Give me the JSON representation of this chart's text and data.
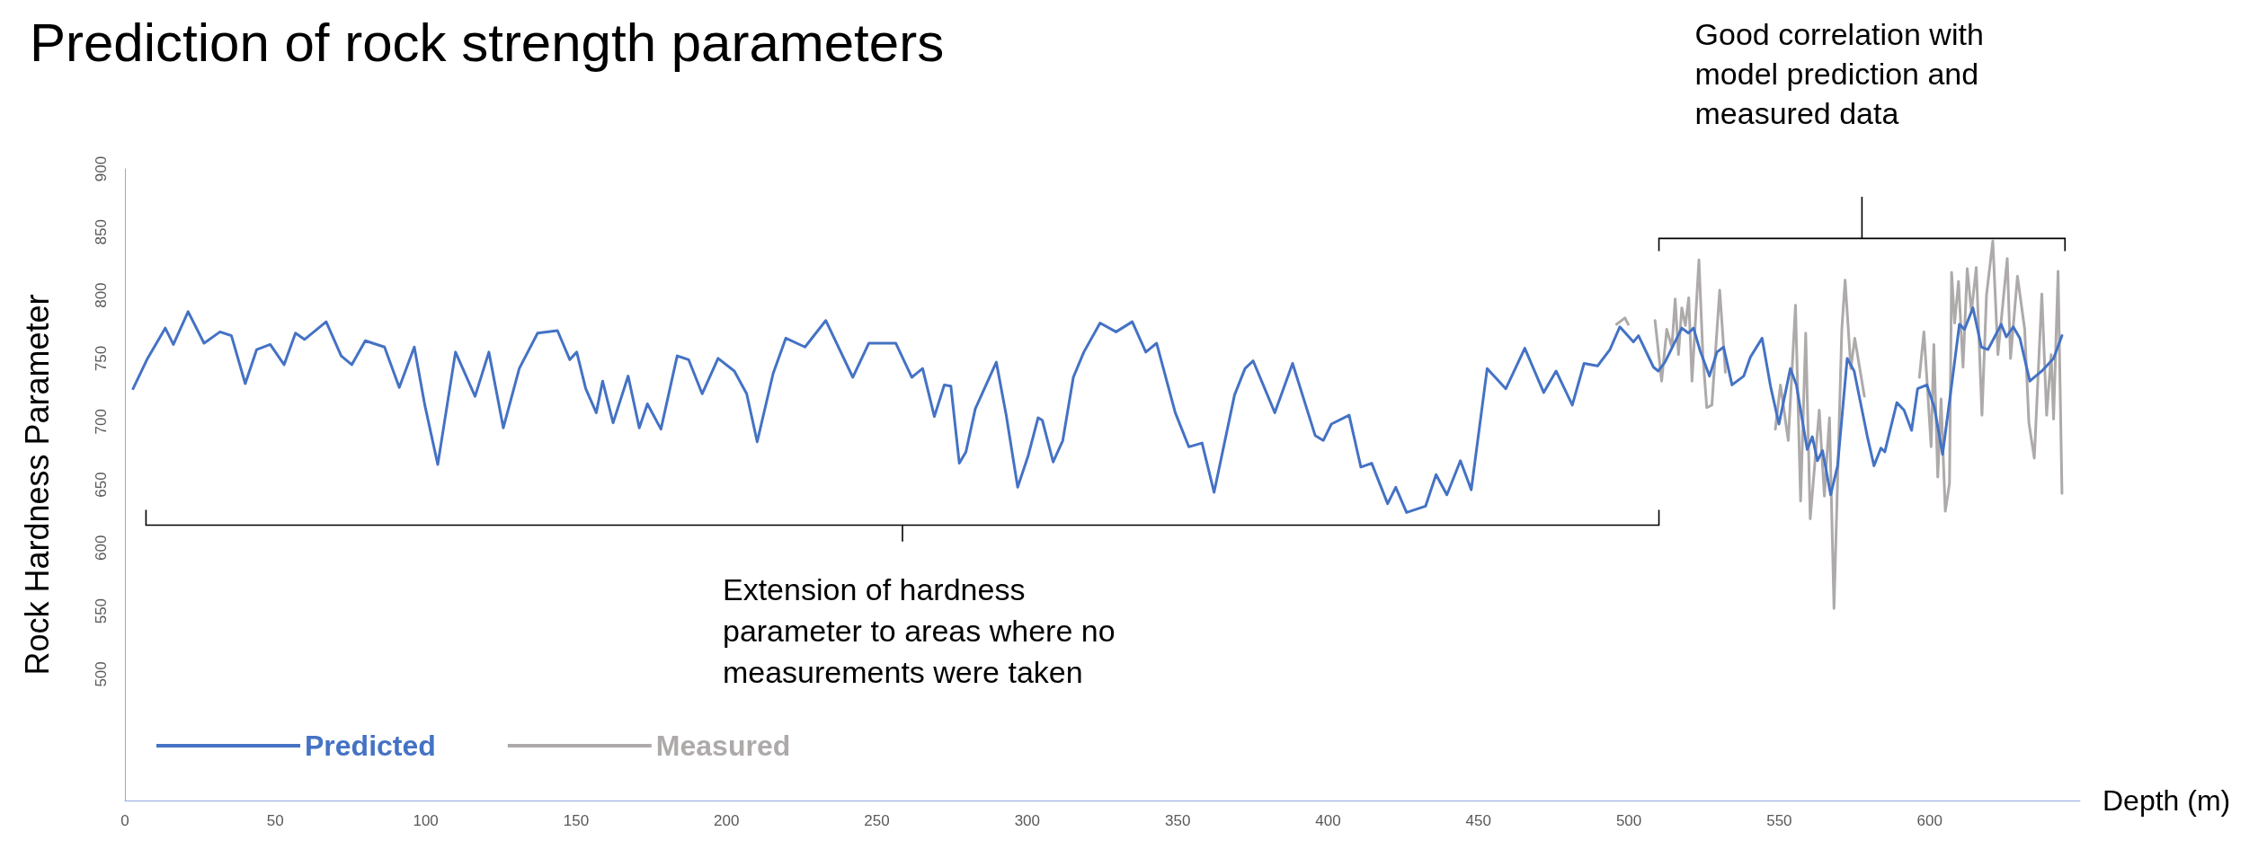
{
  "chart_data": {
    "type": "line",
    "title": "Prediction of rock strength parameters",
    "xlabel": "Depth (m)",
    "ylabel": "Rock Hardness Parameter",
    "xlim": [
      0,
      650
    ],
    "xticks": [
      0,
      50,
      100,
      150,
      200,
      250,
      300,
      350,
      400,
      450,
      500,
      550,
      600
    ],
    "ylim": [
      400,
      900
    ],
    "yticks": [
      500,
      550,
      600,
      650,
      700,
      750,
      800,
      850,
      900
    ],
    "legend": "bottom left",
    "annotations": [
      "Extension of hardness parameter to areas where no measurements were taken",
      "Good correlation with model prediction and measured data"
    ],
    "series": [
      {
        "name": "Predicted",
        "color": "#4472c4",
        "x": [
          2.7,
          7.3,
          13.4,
          16.1,
          21,
          26.3,
          31.6,
          35.4,
          40,
          43.8,
          48.3,
          52.9,
          56.7,
          59.7,
          66.9,
          71.9,
          75.4,
          79.9,
          86.3,
          91.2,
          96.2,
          99.7,
          104,
          109.9,
          116.4,
          121,
          125.8,
          131.1,
          137.2,
          143.8,
          147.9,
          150.2,
          153.2,
          156.7,
          158.8,
          162.3,
          167.3,
          171,
          173.7,
          178.2,
          183.6,
          187.4,
          191.9,
          197.2,
          202.6,
          206.7,
          210.2,
          215.5,
          219.7,
          226.1,
          233,
          242,
          247.3,
          256.3,
          261.6,
          265.2,
          269.1,
          272.4,
          274.6,
          277.4,
          279.6,
          282.7,
          289.7,
          293,
          296.8,
          300.3,
          303.6,
          305,
          308.6,
          311.8,
          315.3,
          318.8,
          324.2,
          329.5,
          334.9,
          339.4,
          343,
          349.2,
          353.7,
          358.1,
          362.1,
          368.9,
          372.4,
          375.1,
          382.3,
          388.2,
          395.7,
          398.4,
          401.1,
          407,
          410.9,
          414.5,
          419.8,
          422.5,
          426.1,
          432.4,
          435.9,
          439.5,
          444,
          447.6,
          452.9,
          459.1,
          465.4,
          471.7,
          475.8,
          481.2,
          485.1,
          489.6,
          493.7,
          497,
          501.5,
          503.2,
          508.2,
          509.8,
          512,
          517.6,
          519.8,
          521.5,
          523.7,
          526.8,
          529.3,
          531.5,
          534.3,
          538.2,
          540.4,
          544.3,
          547.1,
          549.9,
          553.7,
          555.7,
          559.3,
          561,
          562.7,
          564.4,
          567.1,
          569.4,
          572.6,
          574.9,
          579.3,
          581.5,
          583.8,
          585.1,
          589.1,
          591.5,
          594,
          596,
          599.1,
          601.6,
          604.3,
          607.1,
          609.9,
          611.6,
          614.4,
          617.2,
          619.4,
          623.8,
          625.5,
          627.8,
          630,
          633.3,
          637.3,
          641.2,
          644
        ],
        "values": [
          726,
          749,
          774,
          761,
          787,
          762,
          771,
          768,
          730,
          757,
          761,
          745,
          770,
          765,
          779,
          752,
          745,
          764,
          759,
          727,
          759,
          713,
          666,
          755,
          720,
          755,
          695,
          742,
          770,
          772,
          749,
          755,
          726,
          707,
          732,
          699,
          736,
          695,
          714,
          694,
          752,
          749,
          722,
          750,
          740,
          722,
          684,
          738,
          766,
          759,
          780,
          735,
          762,
          762,
          735,
          742,
          704,
          729,
          728,
          667,
          676,
          710,
          747,
          705,
          648,
          673,
          703,
          701,
          668,
          685,
          735,
          755,
          778,
          771,
          779,
          755,
          762,
          707,
          680,
          683,
          644,
          721,
          742,
          748,
          707,
          746,
          689,
          685,
          698,
          705,
          664,
          667,
          635,
          648,
          628,
          633,
          658,
          642,
          669,
          646,
          742,
          726,
          758,
          723,
          740,
          713,
          746,
          744,
          757,
          775,
          763,
          768,
          743,
          740,
          747,
          774,
          770,
          774,
          756,
          736,
          755,
          759,
          729,
          736,
          751,
          766,
          728,
          698,
          742,
          729,
          678,
          688,
          669,
          677,
          642,
          665,
          750,
          740,
          688,
          665,
          679,
          676,
          715,
          709,
          693,
          726,
          729,
          711,
          674,
          725,
          777,
          773,
          790,
          759,
          757,
          777,
          767,
          775,
          766,
          732,
          740,
          750,
          768
        ]
      },
      {
        "name": "Measured",
        "color": "#aeaaaa",
        "x": [
          495.9,
          498.7,
          499.8,
          504,
          508.7,
          510.9,
          512.6,
          514.3,
          515.4,
          516.5,
          517.6,
          518.8,
          519.9,
          521,
          523.3,
          524.6,
          525.9,
          527.6,
          530.2,
          532.1,
          540,
          548.7,
          550.4,
          553,
          555.4,
          557.1,
          558.8,
          560.3,
          563.3,
          565,
          566.7,
          568.2,
          570.8,
          571.9,
          573.8,
          575.1,
          578.3,
          587,
          596.6,
          598.1,
          600.5,
          601.4,
          602.7,
          603.8,
          605.2,
          606.6,
          607.3,
          608.3,
          609.6,
          611.1,
          612.5,
          613.9,
          615.5,
          617.4,
          618.9,
          621,
          622.7,
          625.8,
          626.9,
          629.2,
          631.6,
          633,
          634.8,
          637.3,
          638.9,
          640.4,
          641.2,
          642.7,
          644
        ],
        "values": [
          777,
          782,
          777,
          null,
          780,
          732,
          773,
          759,
          797,
          753,
          790,
          776,
          798,
          732,
          828,
          753,
          711,
          713,
          804,
          739,
          null,
          694,
          729,
          685,
          792,
          637,
          770,
          623,
          709,
          641,
          703,
          552,
          773,
          812,
          742,
          766,
          720,
          null,
          735,
          771,
          680,
          761,
          656,
          718,
          629,
          651,
          818,
          778,
          811,
          743,
          821,
          787,
          822,
          705,
          800,
          843,
          753,
          829,
          750,
          815,
          773,
          699,
          671,
          801,
          705,
          753,
          702,
          819,
          643
        ]
      }
    ]
  }
}
